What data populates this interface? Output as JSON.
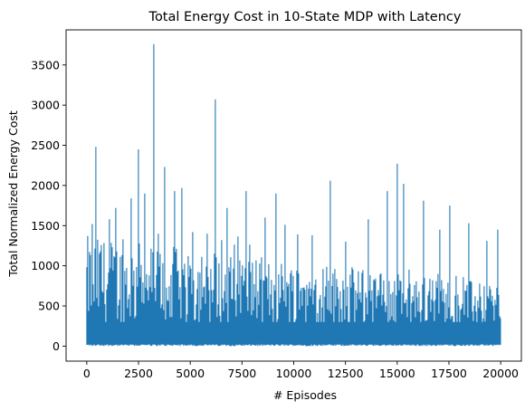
{
  "chart_data": {
    "type": "line",
    "title": "Total Energy Cost in 10-State MDP with Latency",
    "xlabel": "# Episodes",
    "ylabel": "Total Normalized Energy Cost",
    "xlim": [
      -1000,
      21000
    ],
    "ylim": [
      -187,
      3937
    ],
    "x_ticks": [
      0,
      2500,
      5000,
      7500,
      10000,
      12500,
      15000,
      17500,
      20000
    ],
    "y_ticks": [
      0,
      500,
      1000,
      1500,
      2000,
      2500,
      3000,
      3500
    ],
    "grid": false,
    "legend": "none",
    "series": [
      {
        "color": "#1f77b4",
        "x_start": 0,
        "x_end": 20000,
        "peaks": [
          {
            "x": 50,
            "y": 1370
          },
          {
            "x": 280,
            "y": 1520
          },
          {
            "x": 420,
            "y": 2480
          },
          {
            "x": 700,
            "y": 1260
          },
          {
            "x": 1100,
            "y": 1580
          },
          {
            "x": 1400,
            "y": 1720
          },
          {
            "x": 1750,
            "y": 1330
          },
          {
            "x": 2150,
            "y": 1840
          },
          {
            "x": 2480,
            "y": 2450
          },
          {
            "x": 2800,
            "y": 1900
          },
          {
            "x": 3220,
            "y": 3760
          },
          {
            "x": 3450,
            "y": 1400
          },
          {
            "x": 3750,
            "y": 2230
          },
          {
            "x": 4250,
            "y": 1930
          },
          {
            "x": 4600,
            "y": 1970
          },
          {
            "x": 5100,
            "y": 1420
          },
          {
            "x": 5800,
            "y": 1400
          },
          {
            "x": 6220,
            "y": 3070
          },
          {
            "x": 6500,
            "y": 1320
          },
          {
            "x": 6800,
            "y": 1720
          },
          {
            "x": 7700,
            "y": 1930
          },
          {
            "x": 8600,
            "y": 1600
          },
          {
            "x": 9150,
            "y": 1900
          },
          {
            "x": 9600,
            "y": 1510
          },
          {
            "x": 10200,
            "y": 1390
          },
          {
            "x": 10900,
            "y": 1380
          },
          {
            "x": 11750,
            "y": 2060
          },
          {
            "x": 12500,
            "y": 1300
          },
          {
            "x": 13600,
            "y": 1580
          },
          {
            "x": 14500,
            "y": 1930
          },
          {
            "x": 15000,
            "y": 2270
          },
          {
            "x": 15300,
            "y": 2020
          },
          {
            "x": 16250,
            "y": 1810
          },
          {
            "x": 17050,
            "y": 1450
          },
          {
            "x": 17550,
            "y": 1750
          },
          {
            "x": 18450,
            "y": 1530
          },
          {
            "x": 19350,
            "y": 1310
          },
          {
            "x": 19850,
            "y": 1450
          }
        ],
        "typical_band": [
          0,
          700
        ],
        "min_value": 0
      }
    ]
  }
}
